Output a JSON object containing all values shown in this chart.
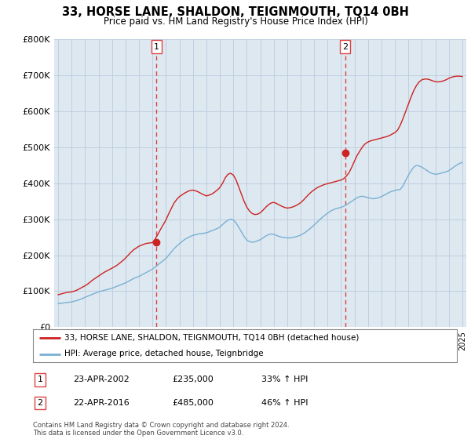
{
  "title": "33, HORSE LANE, SHALDON, TEIGNMOUTH, TQ14 0BH",
  "subtitle": "Price paid vs. HM Land Registry's House Price Index (HPI)",
  "ylim": [
    0,
    800000
  ],
  "yticks": [
    0,
    100000,
    200000,
    300000,
    400000,
    500000,
    600000,
    700000,
    800000
  ],
  "ytick_labels": [
    "£0",
    "£100K",
    "£200K",
    "£300K",
    "£400K",
    "£500K",
    "£600K",
    "£700K",
    "£800K"
  ],
  "xlim_start": 1994.7,
  "xlim_end": 2025.3,
  "sale1_x": 2002.3,
  "sale1_price": 235000,
  "sale1_label": "1",
  "sale2_x": 2016.3,
  "sale2_price": 485000,
  "sale2_label": "2",
  "red_color": "#cc2222",
  "blue_color": "#7ab0d4",
  "vline_color": "#dd4444",
  "plot_bg": "#dde8f0",
  "legend_line1": "33, HORSE LANE, SHALDON, TEIGNMOUTH, TQ14 0BH (detached house)",
  "legend_line2": "HPI: Average price, detached house, Teignbridge",
  "table_row1": [
    "1",
    "23-APR-2002",
    "£235,000",
    "33% ↑ HPI"
  ],
  "table_row2": [
    "2",
    "22-APR-2016",
    "£485,000",
    "46% ↑ HPI"
  ],
  "footer": "Contains HM Land Registry data © Crown copyright and database right 2024.\nThis data is licensed under the Open Government Licence v3.0.",
  "hpi_x": [
    1995.0,
    1995.1,
    1995.2,
    1995.3,
    1995.4,
    1995.5,
    1995.6,
    1995.7,
    1995.8,
    1995.9,
    1996.0,
    1996.1,
    1996.2,
    1996.3,
    1996.4,
    1996.5,
    1996.6,
    1996.7,
    1996.8,
    1996.9,
    1997.0,
    1997.2,
    1997.4,
    1997.6,
    1997.8,
    1998.0,
    1998.2,
    1998.4,
    1998.6,
    1998.8,
    1999.0,
    1999.2,
    1999.4,
    1999.6,
    1999.8,
    2000.0,
    2000.2,
    2000.4,
    2000.6,
    2000.8,
    2001.0,
    2001.2,
    2001.4,
    2001.6,
    2001.8,
    2002.0,
    2002.2,
    2002.4,
    2002.6,
    2002.8,
    2003.0,
    2003.2,
    2003.4,
    2003.6,
    2003.8,
    2004.0,
    2004.2,
    2004.4,
    2004.6,
    2004.8,
    2005.0,
    2005.2,
    2005.4,
    2005.6,
    2005.8,
    2006.0,
    2006.2,
    2006.4,
    2006.6,
    2006.8,
    2007.0,
    2007.2,
    2007.4,
    2007.6,
    2007.8,
    2008.0,
    2008.2,
    2008.4,
    2008.6,
    2008.8,
    2009.0,
    2009.2,
    2009.4,
    2009.6,
    2009.8,
    2010.0,
    2010.2,
    2010.4,
    2010.6,
    2010.8,
    2011.0,
    2011.2,
    2011.4,
    2011.6,
    2011.8,
    2012.0,
    2012.2,
    2012.4,
    2012.6,
    2012.8,
    2013.0,
    2013.2,
    2013.4,
    2013.6,
    2013.8,
    2014.0,
    2014.2,
    2014.4,
    2014.6,
    2014.8,
    2015.0,
    2015.2,
    2015.4,
    2015.6,
    2015.8,
    2016.0,
    2016.2,
    2016.4,
    2016.6,
    2016.8,
    2017.0,
    2017.2,
    2017.4,
    2017.6,
    2017.8,
    2018.0,
    2018.2,
    2018.4,
    2018.6,
    2018.8,
    2019.0,
    2019.2,
    2019.4,
    2019.6,
    2019.8,
    2020.0,
    2020.2,
    2020.4,
    2020.6,
    2020.8,
    2021.0,
    2021.2,
    2021.4,
    2021.6,
    2021.8,
    2022.0,
    2022.2,
    2022.4,
    2022.6,
    2022.8,
    2023.0,
    2023.2,
    2023.4,
    2023.6,
    2023.8,
    2024.0,
    2024.2,
    2024.4,
    2024.6,
    2024.8,
    2025.0
  ],
  "hpi_y": [
    65000,
    65500,
    66000,
    66500,
    67000,
    67500,
    68000,
    68500,
    69000,
    69500,
    70000,
    71000,
    72000,
    73000,
    74000,
    75000,
    76500,
    78000,
    79500,
    81000,
    83000,
    86000,
    89000,
    92000,
    95000,
    98000,
    100000,
    102000,
    104000,
    106000,
    108000,
    111000,
    114000,
    117000,
    120000,
    123000,
    127000,
    131000,
    135000,
    138000,
    141000,
    145000,
    149000,
    153000,
    157000,
    161000,
    167000,
    173000,
    179000,
    185000,
    191000,
    200000,
    209000,
    218000,
    225000,
    232000,
    238000,
    244000,
    248000,
    252000,
    255000,
    257000,
    259000,
    260000,
    261000,
    262000,
    265000,
    268000,
    271000,
    274000,
    278000,
    285000,
    292000,
    297000,
    300000,
    298000,
    290000,
    278000,
    265000,
    252000,
    242000,
    238000,
    236000,
    237000,
    240000,
    243000,
    248000,
    253000,
    257000,
    259000,
    258000,
    255000,
    252000,
    250000,
    249000,
    248000,
    248000,
    249000,
    251000,
    253000,
    256000,
    260000,
    265000,
    271000,
    277000,
    284000,
    291000,
    298000,
    305000,
    311000,
    317000,
    322000,
    326000,
    329000,
    331000,
    333000,
    336000,
    340000,
    345000,
    350000,
    355000,
    360000,
    363000,
    364000,
    362000,
    360000,
    358000,
    357000,
    358000,
    360000,
    363000,
    367000,
    371000,
    375000,
    378000,
    380000,
    382000,
    383000,
    393000,
    408000,
    422000,
    435000,
    445000,
    450000,
    448000,
    445000,
    440000,
    435000,
    430000,
    427000,
    425000,
    426000,
    428000,
    430000,
    432000,
    435000,
    440000,
    446000,
    451000,
    455000,
    458000
  ],
  "red_x": [
    1995.0,
    1995.2,
    1995.4,
    1995.6,
    1995.8,
    1996.0,
    1996.2,
    1996.4,
    1996.6,
    1996.8,
    1997.0,
    1997.2,
    1997.4,
    1997.6,
    1997.8,
    1998.0,
    1998.2,
    1998.4,
    1998.6,
    1998.8,
    1999.0,
    1999.2,
    1999.4,
    1999.6,
    1999.8,
    2000.0,
    2000.2,
    2000.4,
    2000.6,
    2000.8,
    2001.0,
    2001.2,
    2001.4,
    2001.6,
    2001.8,
    2002.0,
    2002.2,
    2002.4,
    2002.6,
    2002.8,
    2003.0,
    2003.2,
    2003.4,
    2003.6,
    2003.8,
    2004.0,
    2004.2,
    2004.4,
    2004.6,
    2004.8,
    2005.0,
    2005.2,
    2005.4,
    2005.6,
    2005.8,
    2006.0,
    2006.2,
    2006.4,
    2006.6,
    2006.8,
    2007.0,
    2007.2,
    2007.4,
    2007.6,
    2007.8,
    2008.0,
    2008.2,
    2008.4,
    2008.6,
    2008.8,
    2009.0,
    2009.2,
    2009.4,
    2009.6,
    2009.8,
    2010.0,
    2010.2,
    2010.4,
    2010.6,
    2010.8,
    2011.0,
    2011.2,
    2011.4,
    2011.6,
    2011.8,
    2012.0,
    2012.2,
    2012.4,
    2012.6,
    2012.8,
    2013.0,
    2013.2,
    2013.4,
    2013.6,
    2013.8,
    2014.0,
    2014.2,
    2014.4,
    2014.6,
    2014.8,
    2015.0,
    2015.2,
    2015.4,
    2015.6,
    2015.8,
    2016.0,
    2016.2,
    2016.4,
    2016.6,
    2016.8,
    2017.0,
    2017.2,
    2017.4,
    2017.6,
    2017.8,
    2018.0,
    2018.2,
    2018.4,
    2018.6,
    2018.8,
    2019.0,
    2019.2,
    2019.4,
    2019.6,
    2019.8,
    2020.0,
    2020.2,
    2020.4,
    2020.6,
    2020.8,
    2021.0,
    2021.2,
    2021.4,
    2021.6,
    2021.8,
    2022.0,
    2022.2,
    2022.4,
    2022.6,
    2022.8,
    2023.0,
    2023.2,
    2023.4,
    2023.6,
    2023.8,
    2024.0,
    2024.2,
    2024.4,
    2024.6,
    2024.8,
    2025.0
  ],
  "red_y": [
    90000,
    92000,
    94000,
    96000,
    97000,
    98000,
    100000,
    103000,
    107000,
    111000,
    115000,
    120000,
    126000,
    132000,
    137000,
    142000,
    147000,
    152000,
    156000,
    160000,
    164000,
    168000,
    173000,
    179000,
    185000,
    192000,
    200000,
    208000,
    215000,
    220000,
    225000,
    228000,
    231000,
    233000,
    234000,
    235000,
    245000,
    258000,
    272000,
    285000,
    298000,
    315000,
    330000,
    345000,
    355000,
    363000,
    368000,
    373000,
    377000,
    380000,
    381000,
    379000,
    376000,
    372000,
    368000,
    365000,
    367000,
    370000,
    375000,
    381000,
    388000,
    400000,
    415000,
    425000,
    428000,
    423000,
    410000,
    390000,
    370000,
    350000,
    334000,
    323000,
    316000,
    313000,
    314000,
    318000,
    325000,
    333000,
    340000,
    345000,
    347000,
    344000,
    340000,
    336000,
    333000,
    331000,
    332000,
    334000,
    337000,
    341000,
    346000,
    353000,
    361000,
    369000,
    376000,
    382000,
    387000,
    391000,
    394000,
    397000,
    399000,
    401000,
    403000,
    405000,
    407000,
    409000,
    413000,
    420000,
    430000,
    445000,
    462000,
    478000,
    490000,
    502000,
    510000,
    515000,
    518000,
    520000,
    522000,
    524000,
    526000,
    528000,
    530000,
    533000,
    537000,
    541000,
    548000,
    562000,
    580000,
    600000,
    620000,
    640000,
    658000,
    672000,
    682000,
    688000,
    690000,
    690000,
    688000,
    685000,
    683000,
    682000,
    683000,
    685000,
    688000,
    692000,
    695000,
    697000,
    698000,
    698000,
    697000
  ]
}
